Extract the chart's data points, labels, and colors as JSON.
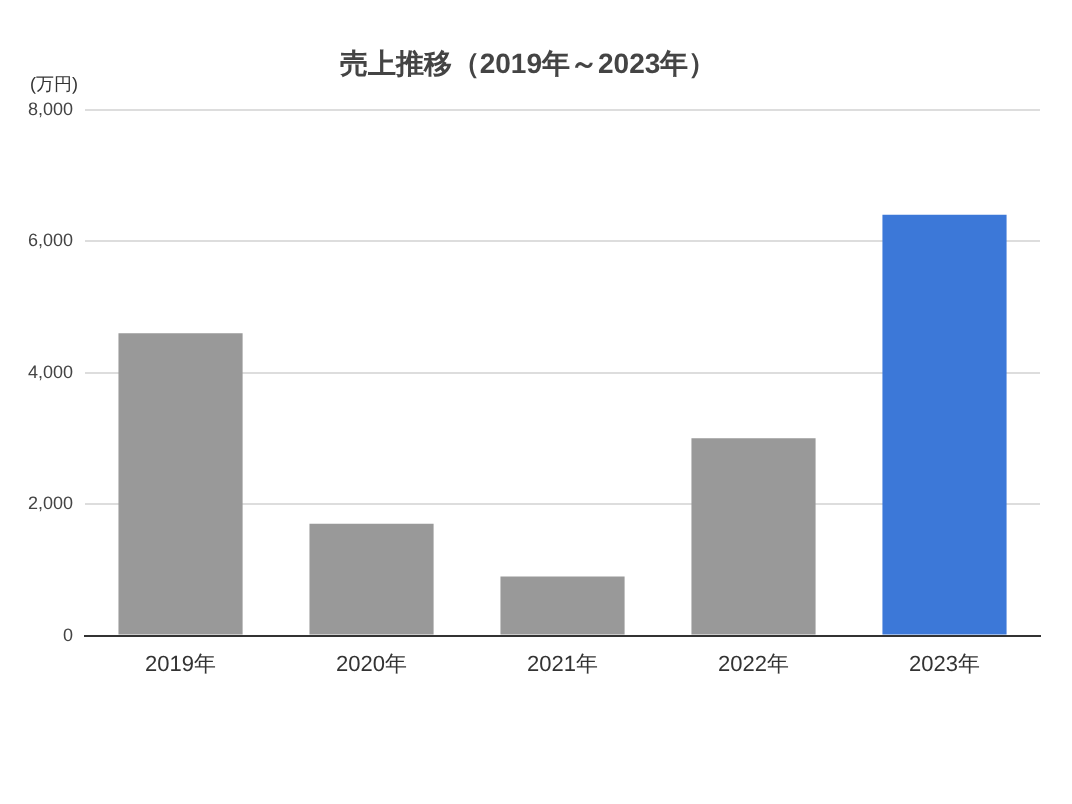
{
  "chart_data": {
    "type": "bar",
    "title": "売上推移（2019年～2023年）",
    "ylabel": "(万円)",
    "categories": [
      "2019年",
      "2020年",
      "2021年",
      "2022年",
      "2023年"
    ],
    "values": [
      4600,
      1700,
      900,
      3000,
      6400
    ],
    "colors": [
      "#999999",
      "#999999",
      "#999999",
      "#999999",
      "#3c78d8"
    ],
    "ylim": [
      0,
      8000
    ],
    "yticks": [
      {
        "value": 0,
        "label": "0"
      },
      {
        "value": 2000,
        "label": "2,000"
      },
      {
        "value": 4000,
        "label": "4,000"
      },
      {
        "value": 6000,
        "label": "6,000"
      },
      {
        "value": 8000,
        "label": "8,000"
      }
    ],
    "grid": "y",
    "legend": false
  }
}
